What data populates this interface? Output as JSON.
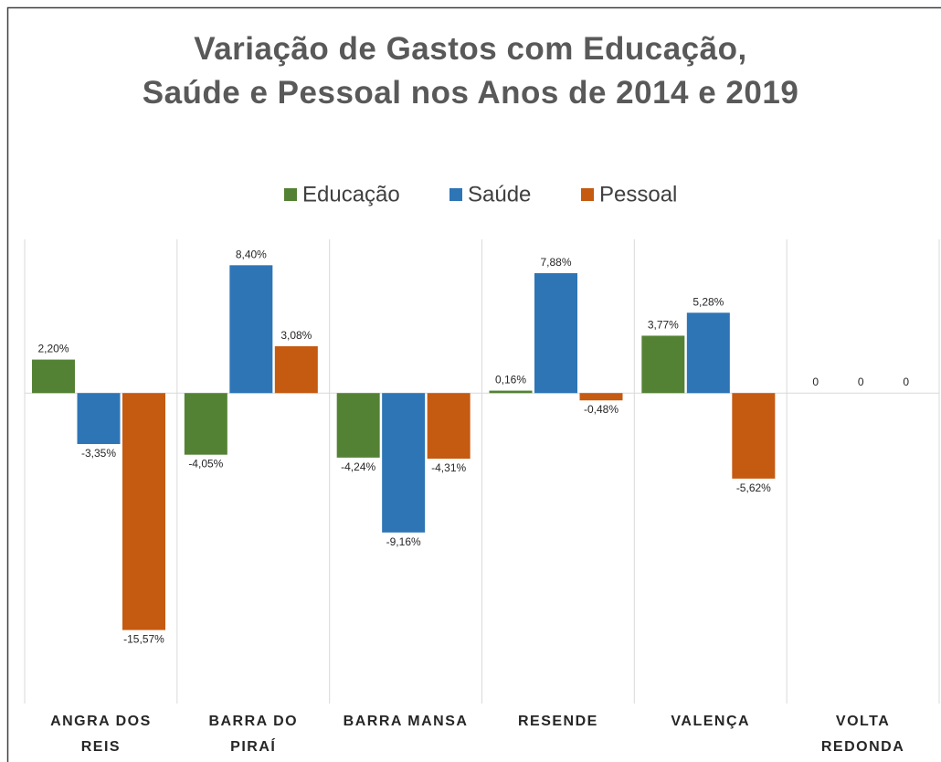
{
  "chart_data": {
    "type": "bar",
    "title": "Variação de Gastos com Educação, Saúde e Pessoal nos Anos de 2014 e 2019",
    "categories": [
      "ANGRA DOS REIS",
      "BARRA DO PIRAÍ",
      "BARRA MANSA",
      "RESENDE",
      "VALENÇA",
      "VOLTA REDONDA"
    ],
    "series": [
      {
        "name": "Educação",
        "color": "#548235",
        "values": [
          2.2,
          -4.05,
          -4.24,
          0.16,
          3.77,
          0
        ],
        "value_labels": [
          "2,20%",
          "-4,05%",
          "-4,24%",
          "0,16%",
          "3,77%",
          "0"
        ]
      },
      {
        "name": "Saúde",
        "color": "#2e75b6",
        "values": [
          -3.35,
          8.4,
          -9.16,
          7.88,
          5.28,
          0
        ],
        "value_labels": [
          "-3,35%",
          "8,40%",
          "-9,16%",
          "7,88%",
          "5,28%",
          "0"
        ]
      },
      {
        "name": "Pessoal",
        "color": "#c55a11",
        "values": [
          -15.57,
          3.08,
          -4.31,
          -0.48,
          -5.62,
          0
        ],
        "value_labels": [
          "-15,57%",
          "3,08%",
          "-4,31%",
          "-0,48%",
          "-5,62%",
          "0"
        ]
      }
    ],
    "ylim": [
      -20.4,
      10.1
    ],
    "legend": "top"
  }
}
